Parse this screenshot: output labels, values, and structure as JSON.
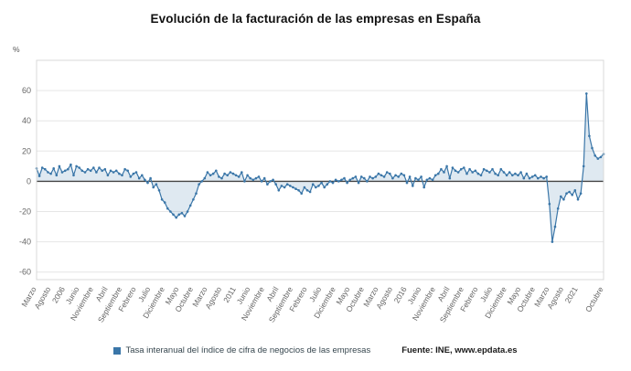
{
  "title": "Evolución de la facturación de las empresas en España",
  "y_axis_unit": "%",
  "legend": {
    "series_label": "Tasa interanual del índice de cifra de negocios de las empresas",
    "source_label": "Fuente: INE, www.epdata.es"
  },
  "chart_data": {
    "type": "line",
    "title": "Evolución de la facturación de las empresas en España",
    "ylabel": "%",
    "ylim": [
      -65,
      80
    ],
    "yticks": [
      -60,
      -40,
      -20,
      0,
      20,
      40,
      60
    ],
    "grid": "horizontal",
    "legend_position": "bottom",
    "line_color": "#3a76a8",
    "fill_opacity": 0.16,
    "zero_line_color": "#444444",
    "series": [
      {
        "name": "Tasa interanual del índice de cifra de negocios de las empresas",
        "values": [
          8.5,
          3.5,
          9,
          8,
          6,
          5,
          8.5,
          4,
          10,
          6,
          7,
          8,
          11,
          4,
          10,
          9,
          7,
          6,
          8,
          7,
          9,
          6,
          9,
          7,
          8,
          4,
          7,
          6,
          7,
          5,
          4,
          8,
          7,
          3,
          5,
          6,
          2,
          4,
          1,
          -1,
          2,
          -4,
          -2,
          -6,
          -12,
          -14,
          -18,
          -20,
          -22,
          -24,
          -22,
          -21,
          -23,
          -20,
          -16,
          -12,
          -8,
          -2,
          0,
          2,
          6,
          4,
          5,
          7,
          3,
          2,
          5,
          4,
          6,
          5,
          4,
          3,
          6,
          0,
          4,
          2,
          1,
          2,
          3,
          0,
          2,
          -2,
          0,
          1,
          -2,
          -6,
          -3,
          -4,
          -2,
          -3,
          -4,
          -5,
          -6,
          -8,
          -4,
          -6,
          -7,
          -2,
          -4,
          -3,
          -1,
          -4,
          -2,
          0,
          -1,
          1,
          0,
          1,
          2,
          -1,
          1,
          2,
          3,
          -1,
          3,
          2,
          0,
          3,
          2,
          3,
          5,
          4,
          3,
          6,
          5,
          2,
          4,
          3,
          5,
          4,
          -1,
          3,
          -3,
          2,
          1,
          3,
          -4,
          1,
          2,
          1,
          4,
          5,
          8,
          6,
          10,
          2,
          9,
          7,
          6,
          8,
          9,
          5,
          8,
          6,
          7,
          5,
          4,
          8,
          7,
          6,
          8,
          5,
          4,
          8,
          6,
          4,
          6,
          4,
          5,
          4,
          6,
          2,
          5,
          2,
          3,
          4,
          2,
          3,
          2,
          3,
          -15,
          -40,
          -30,
          -18,
          -10,
          -12,
          -8,
          -7,
          -9,
          -6,
          -12,
          -8,
          10,
          58,
          30,
          22,
          17,
          15,
          16,
          18
        ]
      }
    ],
    "x_ticks": [
      {
        "i": 0,
        "label": "Marzo"
      },
      {
        "i": 5,
        "label": "Agosto"
      },
      {
        "i": 10,
        "label": "2006"
      },
      {
        "i": 15,
        "label": "Junio"
      },
      {
        "i": 20,
        "label": "Noviembre"
      },
      {
        "i": 25,
        "label": "Abril"
      },
      {
        "i": 30,
        "label": "Septiembre"
      },
      {
        "i": 35,
        "label": "Febrero"
      },
      {
        "i": 40,
        "label": "Julio"
      },
      {
        "i": 45,
        "label": "Diciembre"
      },
      {
        "i": 50,
        "label": "Mayo"
      },
      {
        "i": 55,
        "label": "Octubre"
      },
      {
        "i": 60,
        "label": "Marzo"
      },
      {
        "i": 65,
        "label": "Agosto"
      },
      {
        "i": 70,
        "label": "2011"
      },
      {
        "i": 75,
        "label": "Junio"
      },
      {
        "i": 80,
        "label": "Noviembre"
      },
      {
        "i": 85,
        "label": "Abril"
      },
      {
        "i": 90,
        "label": "Septiembre"
      },
      {
        "i": 95,
        "label": "Febrero"
      },
      {
        "i": 100,
        "label": "Julio"
      },
      {
        "i": 105,
        "label": "Diciembre"
      },
      {
        "i": 110,
        "label": "Mayo"
      },
      {
        "i": 115,
        "label": "Octubre"
      },
      {
        "i": 120,
        "label": "Marzo"
      },
      {
        "i": 125,
        "label": "Agosto"
      },
      {
        "i": 130,
        "label": "2016"
      },
      {
        "i": 135,
        "label": "Junio"
      },
      {
        "i": 140,
        "label": "Noviembre"
      },
      {
        "i": 145,
        "label": "Abril"
      },
      {
        "i": 150,
        "label": "Septiembre"
      },
      {
        "i": 155,
        "label": "Febrero"
      },
      {
        "i": 160,
        "label": "Julio"
      },
      {
        "i": 165,
        "label": "Diciembre"
      },
      {
        "i": 170,
        "label": "Mayo"
      },
      {
        "i": 175,
        "label": "Octubre"
      },
      {
        "i": 180,
        "label": "Marzo"
      },
      {
        "i": 185,
        "label": "Agosto"
      },
      {
        "i": 190,
        "label": "2021"
      },
      {
        "i": 199,
        "label": "Octubre"
      }
    ]
  }
}
